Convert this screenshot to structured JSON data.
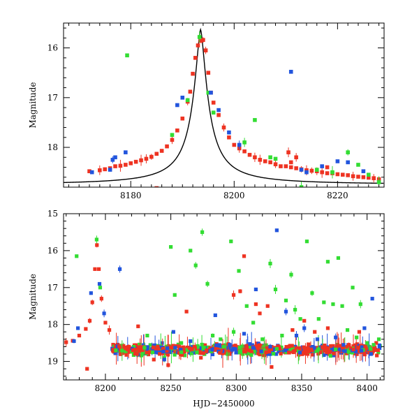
{
  "chart_data": [
    {
      "type": "scatter",
      "panel": "top",
      "xlabel": "",
      "ylabel": "Magnitude",
      "xlim": [
        8167,
        8229
      ],
      "ylim": [
        18.8,
        15.5
      ],
      "y_inverted": true,
      "xticks": [
        8180,
        8200,
        8220
      ],
      "yticks": [
        16,
        17,
        18
      ],
      "colors": {
        "red": "#ee3322",
        "green": "#33dd33",
        "blue": "#2255dd",
        "model": "#000000"
      },
      "model_curve": {
        "t0": 8193.5,
        "peak": 15.63,
        "baseline": 18.75,
        "tE": 18
      },
      "series": [
        {
          "color": "red",
          "points": [
            [
              8172,
              18.48
            ],
            [
              8174,
              18.46
            ],
            [
              8175,
              18.44
            ],
            [
              8176,
              18.42
            ],
            [
              8177,
              18.38
            ],
            [
              8178,
              18.37
            ],
            [
              8179,
              18.35
            ],
            [
              8180,
              18.32
            ],
            [
              8181,
              18.29
            ],
            [
              8182,
              18.26
            ],
            [
              8183,
              18.23
            ],
            [
              8184,
              18.19
            ],
            [
              8185,
              18.13
            ],
            [
              8186,
              18.07
            ],
            [
              8187,
              17.98
            ],
            [
              8188,
              17.85
            ],
            [
              8189,
              17.66
            ],
            [
              8190,
              17.42
            ],
            [
              8191,
              17.08
            ],
            [
              8191.5,
              16.88
            ],
            [
              8192,
              16.52
            ],
            [
              8192.5,
              16.2
            ],
            [
              8193,
              15.95
            ],
            [
              8193.5,
              15.86
            ],
            [
              8194,
              15.84
            ],
            [
              8194.5,
              16.05
            ],
            [
              8195,
              16.5
            ],
            [
              8195.5,
              16.9
            ],
            [
              8196,
              17.1
            ],
            [
              8197,
              17.35
            ],
            [
              8198,
              17.6
            ],
            [
              8199,
              17.8
            ],
            [
              8200,
              17.95
            ],
            [
              8201,
              18.02
            ],
            [
              8202,
              18.08
            ],
            [
              8203,
              18.15
            ],
            [
              8204,
              18.2
            ],
            [
              8205,
              18.25
            ],
            [
              8206,
              18.28
            ],
            [
              8207,
              18.3
            ],
            [
              8208,
              18.34
            ],
            [
              8209,
              18.38
            ],
            [
              8210,
              18.38
            ],
            [
              8211,
              18.4
            ],
            [
              8212,
              18.42
            ],
            [
              8213,
              18.44
            ],
            [
              8214,
              18.46
            ],
            [
              8215,
              18.47
            ],
            [
              8216,
              18.48
            ],
            [
              8217,
              18.5
            ],
            [
              8218,
              18.52
            ],
            [
              8219,
              18.52
            ],
            [
              8220,
              18.54
            ],
            [
              8221,
              18.55
            ],
            [
              8222,
              18.56
            ],
            [
              8223,
              18.58
            ],
            [
              8224,
              18.59
            ],
            [
              8225,
              18.6
            ],
            [
              8226,
              18.61
            ],
            [
              8227,
              18.62
            ],
            [
              8228,
              18.64
            ],
            [
              8212,
              18.2
            ],
            [
              8211,
              18.3
            ],
            [
              8218,
              18.4
            ],
            [
              8210.5,
              18.1
            ],
            [
              8185,
              18.82
            ]
          ]
        },
        {
          "color": "green",
          "points": [
            [
              8179.3,
              16.15
            ],
            [
              8188,
              17.75
            ],
            [
              8191,
              17.05
            ],
            [
              8193.3,
              15.78
            ],
            [
              8195,
              16.9
            ],
            [
              8196,
              17.3
            ],
            [
              8202,
              17.9
            ],
            [
              8204,
              17.45
            ],
            [
              8207,
              18.2
            ],
            [
              8208,
              18.23
            ],
            [
              8216,
              18.45
            ],
            [
              8219,
              18.5
            ],
            [
              8222,
              18.1
            ],
            [
              8224,
              18.35
            ],
            [
              8226,
              18.55
            ],
            [
              8228,
              18.7
            ],
            [
              8213,
              18.8
            ]
          ]
        },
        {
          "color": "blue",
          "points": [
            [
              8172.5,
              18.5
            ],
            [
              8176,
              18.45
            ],
            [
              8176.5,
              18.25
            ],
            [
              8177,
              18.2
            ],
            [
              8179,
              18.1
            ],
            [
              8189,
              17.15
            ],
            [
              8190,
              17.0
            ],
            [
              8195.5,
              16.9
            ],
            [
              8197,
              17.25
            ],
            [
              8199,
              17.7
            ],
            [
              8201,
              17.95
            ],
            [
              8211,
              16.48
            ],
            [
              8213,
              18.45
            ],
            [
              8214,
              18.5
            ],
            [
              8217,
              18.38
            ],
            [
              8220,
              18.28
            ],
            [
              8222,
              18.3
            ],
            [
              8225,
              18.48
            ]
          ]
        }
      ]
    },
    {
      "type": "scatter",
      "panel": "bottom",
      "xlabel": "HJD−2450000",
      "ylabel": "Magnitude",
      "xlim": [
        8168,
        8413
      ],
      "ylim": [
        19.5,
        15
      ],
      "y_inverted": true,
      "xticks": [
        8200,
        8250,
        8300,
        8350,
        8400
      ],
      "yticks": [
        15,
        16,
        17,
        18,
        19
      ],
      "baseline_band": {
        "x_start": 8205,
        "x_end": 8410,
        "center": 18.68,
        "spread": 0.14,
        "density_per_day": 4
      },
      "series": [
        {
          "color": "red",
          "points": [
            [
              8170,
              18.48
            ],
            [
              8175,
              18.44
            ],
            [
              8180,
              18.3
            ],
            [
              8185,
              18.12
            ],
            [
              8188,
              17.9
            ],
            [
              8190,
              17.4
            ],
            [
              8192,
              16.5
            ],
            [
              8193.5,
              15.85
            ],
            [
              8195,
              16.5
            ],
            [
              8197,
              17.3
            ],
            [
              8200,
              17.95
            ],
            [
              8203,
              18.15
            ],
            [
              8186,
              19.2
            ],
            [
              8225,
              18.05
            ],
            [
              8237,
              18.95
            ],
            [
              8248,
              19.1
            ],
            [
              8262,
              17.65
            ],
            [
              8268,
              18.6
            ],
            [
              8273,
              18.9
            ],
            [
              8298,
              17.2
            ],
            [
              8303,
              17.1
            ],
            [
              8306,
              16.15
            ],
            [
              8315,
              17.45
            ],
            [
              8318,
              17.7
            ],
            [
              8324,
              17.5
            ],
            [
              8327,
              19.15
            ],
            [
              8343,
              18.15
            ],
            [
              8352,
              17.9
            ],
            [
              8360,
              18.2
            ],
            [
              8370,
              18.1
            ],
            [
              8386,
              18.55
            ],
            [
              8394,
              18.2
            ],
            [
              8407,
              18.5
            ]
          ]
        },
        {
          "color": "green",
          "points": [
            [
              8178,
              16.15
            ],
            [
              8193.3,
              15.7
            ],
            [
              8196,
              17.0
            ],
            [
              8208,
              18.7
            ],
            [
              8232,
              18.3
            ],
            [
              8245,
              18.9
            ],
            [
              8250,
              15.9
            ],
            [
              8253,
              17.2
            ],
            [
              8258,
              18.5
            ],
            [
              8265,
              16.0
            ],
            [
              8269,
              16.4
            ],
            [
              8274,
              15.5
            ],
            [
              8278,
              16.9
            ],
            [
              8282,
              18.3
            ],
            [
              8288,
              18.4
            ],
            [
              8296,
              15.75
            ],
            [
              8302,
              16.55
            ],
            [
              8308,
              17.5
            ],
            [
              8313,
              17.95
            ],
            [
              8320,
              18.4
            ],
            [
              8326,
              16.35
            ],
            [
              8330,
              17.05
            ],
            [
              8338,
              17.35
            ],
            [
              8342,
              16.65
            ],
            [
              8345,
              17.6
            ],
            [
              8349,
              17.85
            ],
            [
              8354,
              15.75
            ],
            [
              8358,
              17.15
            ],
            [
              8363,
              17.85
            ],
            [
              8367,
              17.4
            ],
            [
              8370,
              16.3
            ],
            [
              8374,
              17.45
            ],
            [
              8378,
              16.2
            ],
            [
              8381,
              17.5
            ],
            [
              8385,
              18.15
            ],
            [
              8389,
              17.0
            ],
            [
              8392,
              18.35
            ],
            [
              8395,
              17.45
            ],
            [
              8400,
              18.5
            ],
            [
              8405,
              18.55
            ],
            [
              8409,
              18.4
            ],
            [
              8258,
              18.75
            ],
            [
              8298,
              18.2
            ],
            [
              8335,
              18.3
            ],
            [
              8372,
              18.85
            ]
          ]
        },
        {
          "color": "blue",
          "points": [
            [
              8176,
              18.45
            ],
            [
              8179,
              18.1
            ],
            [
              8189,
              17.15
            ],
            [
              8195.5,
              16.9
            ],
            [
              8199,
              17.7
            ],
            [
              8211,
              16.5
            ],
            [
              8245,
              18.95
            ],
            [
              8252,
              18.2
            ],
            [
              8265,
              18.45
            ],
            [
              8284,
              17.75
            ],
            [
              8295,
              18.55
            ],
            [
              8306,
              18.25
            ],
            [
              8315,
              17.05
            ],
            [
              8326,
              18.6
            ],
            [
              8331,
              15.45
            ],
            [
              8338,
              17.65
            ],
            [
              8346,
              18.3
            ],
            [
              8352,
              18.1
            ],
            [
              8362,
              18.4
            ],
            [
              8376,
              18.35
            ],
            [
              8382,
              18.55
            ],
            [
              8398,
              18.1
            ],
            [
              8403,
              18.8
            ],
            [
              8404,
              17.3
            ]
          ]
        }
      ]
    }
  ]
}
